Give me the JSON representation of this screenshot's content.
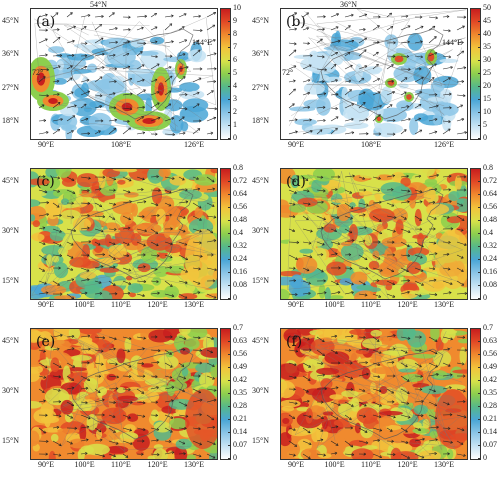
{
  "panels": [
    {
      "id": "a",
      "label": "(a)",
      "kind": "precip",
      "lat_ticks": [
        "45°N",
        "36°N",
        "27°N",
        "18°N"
      ],
      "lon_ticks": [
        "90°E",
        "108°E",
        "126°E"
      ],
      "top_label": "54°N",
      "right_label": "144°E",
      "side_lat": "72°",
      "colorbar": {
        "min": 0,
        "max": 10,
        "ticks": [
          "10",
          "9",
          "8",
          "7",
          "6",
          "5",
          "4",
          "3",
          "2",
          "1",
          "0"
        ],
        "colors": [
          "#ffffff",
          "#c6e3f3",
          "#8cc6e6",
          "#4aa6d6",
          "#56b88a",
          "#8ccf4e",
          "#d8e14a",
          "#f2c43c",
          "#f08a2e",
          "#e24a26",
          "#c81e1e"
        ]
      }
    },
    {
      "id": "b",
      "label": "(b)",
      "kind": "precip",
      "lat_ticks": [
        "45°N",
        "36°N",
        "27°N",
        "18°N"
      ],
      "lon_ticks": [
        "90°E",
        "108°E",
        "126°E"
      ],
      "top_label": "36°N",
      "right_label": "144°E",
      "side_lat": "72°",
      "colorbar": {
        "min": 0,
        "max": 50,
        "ticks": [
          "50",
          "45",
          "40",
          "35",
          "30",
          "25",
          "20",
          "15",
          "10",
          "5",
          "0"
        ],
        "colors": [
          "#ffffff",
          "#c6e3f3",
          "#8cc6e6",
          "#4aa6d6",
          "#56b88a",
          "#8ccf4e",
          "#d8e14a",
          "#f2c43c",
          "#f08a2e",
          "#e24a26",
          "#c81e1e"
        ]
      }
    },
    {
      "id": "c",
      "label": "(c)",
      "kind": "field",
      "lat_ticks": [
        "45°N",
        "30°N",
        "15°N"
      ],
      "lon_ticks": [
        "90°E",
        "100°E",
        "110°E",
        "120°E",
        "130°E"
      ],
      "colorbar": {
        "min": 0,
        "max": 0.8,
        "ticks": [
          "0.8",
          "0.72",
          "0.64",
          "0.56",
          "0.48",
          "0.4",
          "0.32",
          "0.24",
          "0.16",
          "0.08",
          "0"
        ],
        "colors": [
          "#ffffff",
          "#c6e3f3",
          "#8cc6e6",
          "#4aa6d6",
          "#56b88a",
          "#8ccf4e",
          "#d8e14a",
          "#f2c43c",
          "#f08a2e",
          "#e24a26",
          "#c81e1e"
        ]
      }
    },
    {
      "id": "d",
      "label": "(d)",
      "kind": "field",
      "lat_ticks": [
        "45°N",
        "30°N",
        "15°N"
      ],
      "lon_ticks": [
        "90°E",
        "100°E",
        "110°E",
        "120°E",
        "130°E"
      ],
      "colorbar": {
        "min": 0,
        "max": 0.8,
        "ticks": [
          "0.8",
          "0.72",
          "0.64",
          "0.56",
          "0.48",
          "0.4",
          "0.32",
          "0.24",
          "0.16",
          "0.08",
          "0"
        ],
        "colors": [
          "#ffffff",
          "#c6e3f3",
          "#8cc6e6",
          "#4aa6d6",
          "#56b88a",
          "#8ccf4e",
          "#d8e14a",
          "#f2c43c",
          "#f08a2e",
          "#e24a26",
          "#c81e1e"
        ]
      }
    },
    {
      "id": "e",
      "label": "(e)",
      "kind": "field-hot",
      "lat_ticks": [
        "45°N",
        "30°N",
        "15°N"
      ],
      "lon_ticks": [
        "90°E",
        "100°E",
        "110°E",
        "120°E",
        "130°E"
      ],
      "colorbar": {
        "min": 0,
        "max": 0.7,
        "ticks": [
          "0.7",
          "0.63",
          "0.56",
          "0.49",
          "0.42",
          "0.35",
          "0.28",
          "0.21",
          "0.14",
          "0.07",
          "0"
        ],
        "colors": [
          "#ffffff",
          "#c6e3f3",
          "#8cc6e6",
          "#4aa6d6",
          "#56b88a",
          "#8ccf4e",
          "#d8e14a",
          "#f2c43c",
          "#f08a2e",
          "#e24a26",
          "#c81e1e"
        ]
      }
    },
    {
      "id": "f",
      "label": "(f)",
      "kind": "field-hot",
      "lat_ticks": [
        "45°N",
        "30°N",
        "15°N"
      ],
      "lon_ticks": [
        "90°E",
        "100°E",
        "110°E",
        "120°E",
        "130°E"
      ],
      "colorbar": {
        "min": 0,
        "max": 0.7,
        "ticks": [
          "0.7",
          "0.63",
          "0.56",
          "0.49",
          "0.42",
          "0.35",
          "0.28",
          "0.21",
          "0.14",
          "0.07",
          "0"
        ],
        "colors": [
          "#ffffff",
          "#c6e3f3",
          "#8cc6e6",
          "#4aa6d6",
          "#56b88a",
          "#8ccf4e",
          "#d8e14a",
          "#f2c43c",
          "#f08a2e",
          "#e24a26",
          "#c81e1e"
        ]
      }
    }
  ]
}
